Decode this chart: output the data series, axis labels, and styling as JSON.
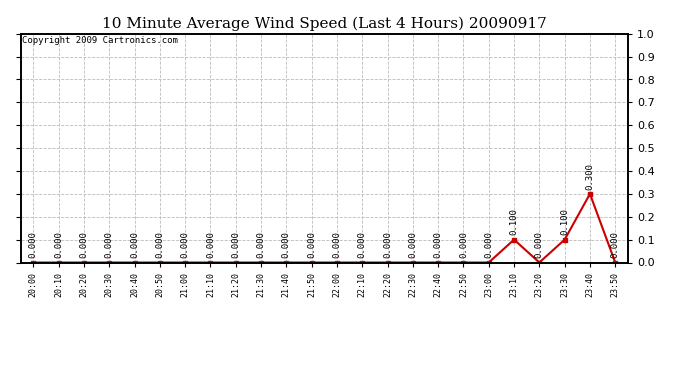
{
  "title": "10 Minute Average Wind Speed (Last 4 Hours) 20090917",
  "copyright_text": "Copyright 2009 Cartronics.com",
  "x_labels": [
    "20:00",
    "20:10",
    "20:20",
    "20:30",
    "20:40",
    "20:50",
    "21:00",
    "21:10",
    "21:20",
    "21:30",
    "21:40",
    "21:50",
    "22:00",
    "22:10",
    "22:20",
    "22:30",
    "22:40",
    "22:50",
    "23:00",
    "23:10",
    "23:20",
    "23:30",
    "23:40",
    "23:50"
  ],
  "y_values": [
    0.0,
    0.0,
    0.0,
    0.0,
    0.0,
    0.0,
    0.0,
    0.0,
    0.0,
    0.0,
    0.0,
    0.0,
    0.0,
    0.0,
    0.0,
    0.0,
    0.0,
    0.0,
    0.0,
    0.1,
    0.0,
    0.1,
    0.3,
    0.0
  ],
  "line_color": "#cc0000",
  "marker": "s",
  "marker_size": 2.5,
  "ylim": [
    0.0,
    1.0
  ],
  "yticks": [
    0.0,
    0.1,
    0.2,
    0.3,
    0.4,
    0.5,
    0.6,
    0.7,
    0.8,
    0.9,
    1.0
  ],
  "grid_color": "#bbbbbb",
  "grid_style": "--",
  "bg_color": "#ffffff",
  "plot_bg_color": "#ffffff",
  "title_fontsize": 11,
  "annotation_fontsize": 6.5,
  "copyright_fontsize": 6.5
}
